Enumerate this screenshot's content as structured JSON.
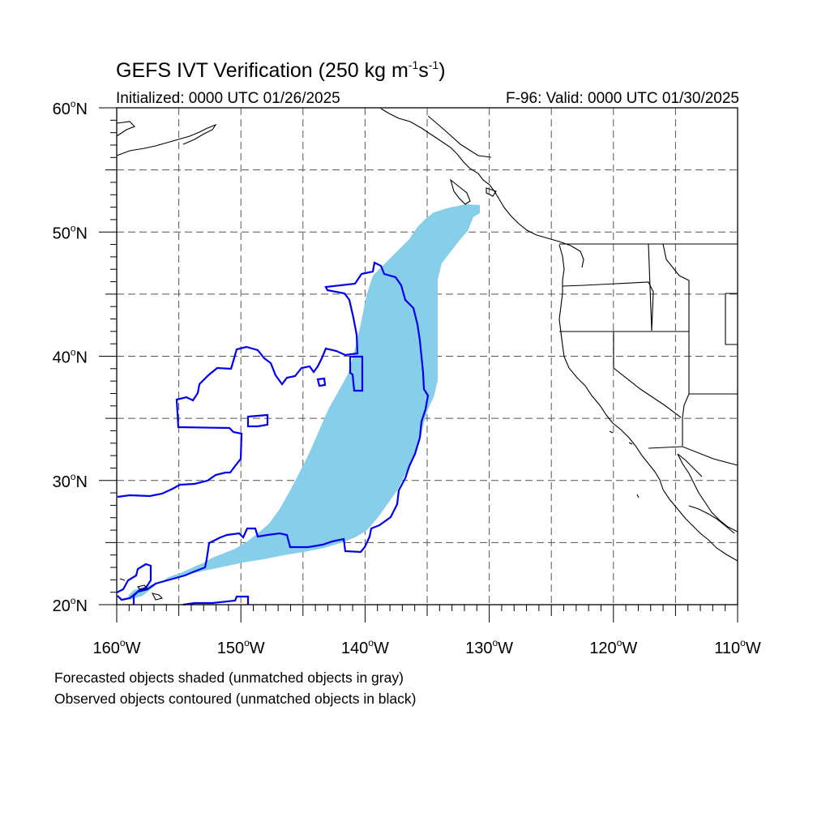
{
  "title": {
    "main": "GEFS IVT Verification (250 kg m",
    "sup1": "-1",
    "mid": "s",
    "sup2": "-1",
    "end": ")"
  },
  "subtitle_left": "Initialized: 0000 UTC 01/26/2025",
  "subtitle_right": "F-96: Valid: 0000 UTC 01/30/2025",
  "notes": [
    "Forecasted objects shaded (unmatched objects in gray)",
    "Observed objects contoured (unmatched objects in black)"
  ],
  "map": {
    "lon_range": [
      -160,
      -110
    ],
    "lat_range": [
      20,
      60
    ],
    "lon_ticks": [
      {
        "value": -160,
        "num": "160",
        "hemi": "W"
      },
      {
        "value": -150,
        "num": "150",
        "hemi": "W"
      },
      {
        "value": -140,
        "num": "140",
        "hemi": "W"
      },
      {
        "value": -130,
        "num": "130",
        "hemi": "W"
      },
      {
        "value": -120,
        "num": "120",
        "hemi": "W"
      },
      {
        "value": -110,
        "num": "110",
        "hemi": "W"
      }
    ],
    "lat_ticks": [
      {
        "value": 20,
        "num": "20",
        "hemi": "N"
      },
      {
        "value": 30,
        "num": "30",
        "hemi": "N"
      },
      {
        "value": 40,
        "num": "40",
        "hemi": "N"
      },
      {
        "value": 50,
        "num": "50",
        "hemi": "N"
      },
      {
        "value": 60,
        "num": "60",
        "hemi": "N"
      }
    ],
    "gridline_spacing_deg": 5,
    "gridlines": "dashed",
    "colors": {
      "forecast_fill": "#87ceeb",
      "observed_contour": "#0000ee",
      "coastline": "#000000",
      "grid": "#555555"
    }
  }
}
